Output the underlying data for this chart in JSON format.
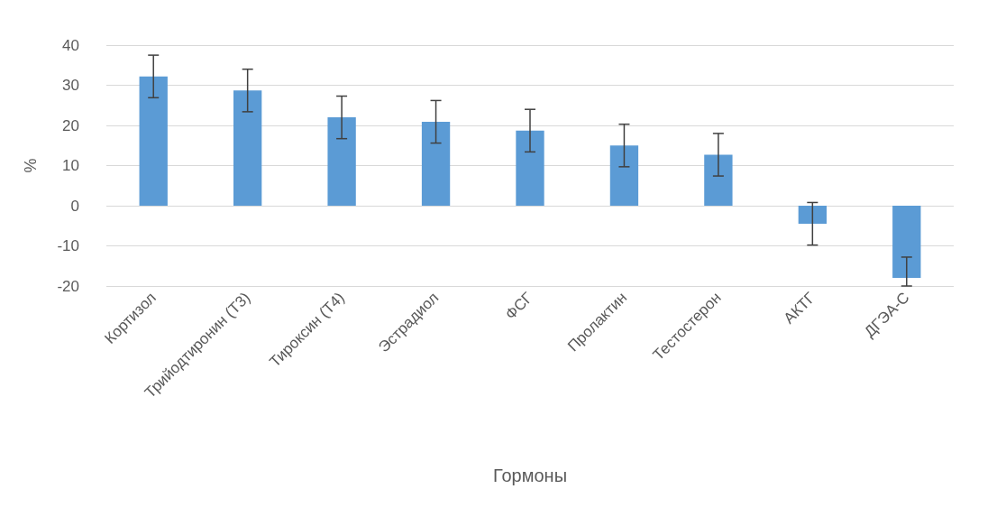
{
  "chart_data": {
    "type": "bar",
    "xlabel": "Гормоны",
    "ylabel": "%",
    "categories": [
      "Кортизол",
      "Трийодтиронин (Т3)",
      "Тироксин (Т4)",
      "Эстрадиол",
      "ФСГ",
      "Пролактин",
      "Тестостерон",
      "АКТГ",
      "ДГЭА-С"
    ],
    "values": [
      32.2,
      28.7,
      22,
      20.9,
      18.7,
      15,
      12.7,
      -4.5,
      -18
    ],
    "errors": [
      5.3,
      5.3,
      5.3,
      5.3,
      5.3,
      5.3,
      5.3,
      5.3,
      [
        -20,
        -12.8
      ]
    ],
    "color": "#5b9bd5",
    "ylim": [
      -20,
      40
    ],
    "yticks": [
      -20,
      -10,
      0,
      10,
      20,
      30,
      40
    ],
    "grid": "y"
  }
}
